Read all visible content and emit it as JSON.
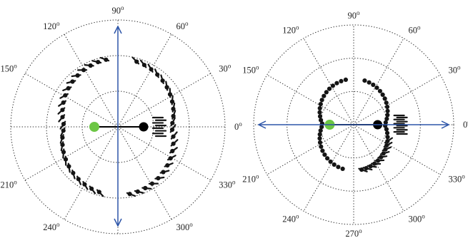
{
  "angle_labels": [
    {
      "deg": "0",
      "sup": "o"
    },
    {
      "deg": "30",
      "sup": "o"
    },
    {
      "deg": "60",
      "sup": "o"
    },
    {
      "deg": "90",
      "sup": "o"
    },
    {
      "deg": "120",
      "sup": "o"
    },
    {
      "deg": "150",
      "sup": "o"
    },
    {
      "deg": "210",
      "sup": "o"
    },
    {
      "deg": "240",
      "sup": "o"
    },
    {
      "deg": "270",
      "sup": "o"
    },
    {
      "deg": "300",
      "sup": "o"
    },
    {
      "deg": "330",
      "sup": "o"
    }
  ],
  "colors": {
    "grid": "#333333",
    "markers": "#151515",
    "green_particle": "#6cc644",
    "black_particle": "#000000",
    "arrow": "#2d55a8"
  },
  "panels": [
    {
      "id": "left",
      "arrow_axis": "vertical",
      "ring_a": 0.64,
      "ring_b": 0.5,
      "lobe_gap_deg": 7,
      "tick_count": 62,
      "cluster_count": 8
    },
    {
      "id": "right",
      "arrow_axis": "horizontal",
      "ring_a": 0.46,
      "ring_b": 0.31,
      "lobe_gap_deg": 6,
      "tick_count": 10,
      "cluster_count": 10
    }
  ]
}
